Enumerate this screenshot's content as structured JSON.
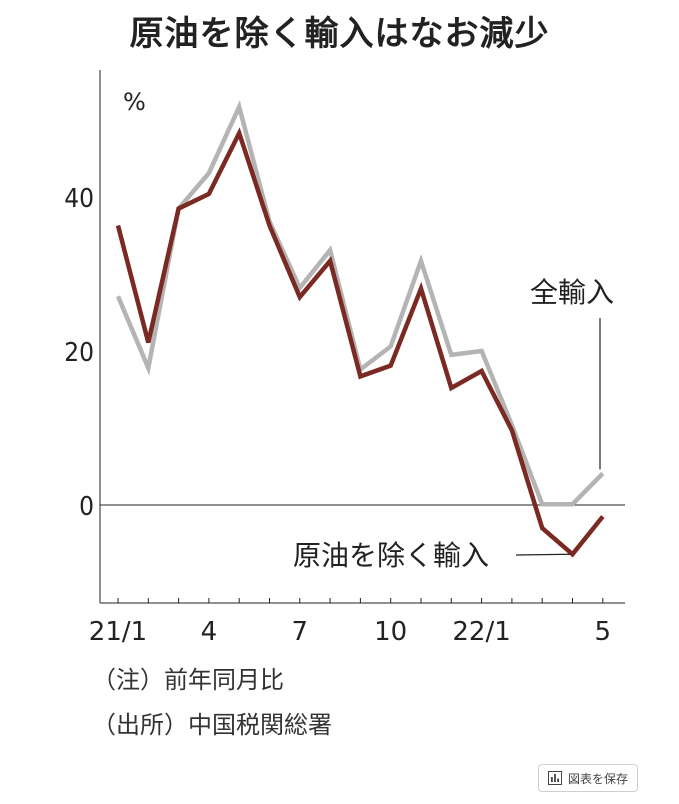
{
  "chart_data": {
    "type": "line",
    "title": "原油を除く輸入はなお減少",
    "ylabel": "%",
    "ylim": [
      -13,
      57
    ],
    "yticks": [
      0,
      20,
      40
    ],
    "x_tick_labels": [
      {
        "index": 0,
        "label": "21/1"
      },
      {
        "index": 3,
        "label": "4"
      },
      {
        "index": 6,
        "label": "7"
      },
      {
        "index": 9,
        "label": "10"
      },
      {
        "index": 12,
        "label": "22/1"
      },
      {
        "index": 16,
        "label": "5"
      }
    ],
    "x": [
      "21/1",
      "21/2",
      "21/3",
      "21/4",
      "21/5",
      "21/6",
      "21/7",
      "21/8",
      "21/9",
      "21/10",
      "21/11",
      "21/12",
      "22/1",
      "22/2",
      "22/3",
      "22/4",
      "22/5"
    ],
    "series": [
      {
        "name": "全輸入",
        "color": "#b4b4b4",
        "values": [
          27.1,
          17.8,
          38.5,
          43.1,
          51.7,
          36.8,
          28.2,
          33.1,
          17.6,
          20.6,
          31.7,
          19.5,
          20.0,
          10.4,
          0.1,
          0.1,
          4.1
        ]
      },
      {
        "name": "原油を除く輸入",
        "color": "#7a2a22",
        "values": [
          36.3,
          21.1,
          38.5,
          40.4,
          48.3,
          36.3,
          27.0,
          31.7,
          16.7,
          18.1,
          28.1,
          15.2,
          17.4,
          9.7,
          -3.0,
          -6.4,
          -1.5
        ]
      }
    ],
    "grid": false,
    "legend": "inline labels"
  },
  "notes": {
    "note1": "（注）前年同月比",
    "note2": "（出所）中国税関総署"
  },
  "save_button": {
    "label": "図表を保存",
    "icon": "bar-chart-icon"
  }
}
